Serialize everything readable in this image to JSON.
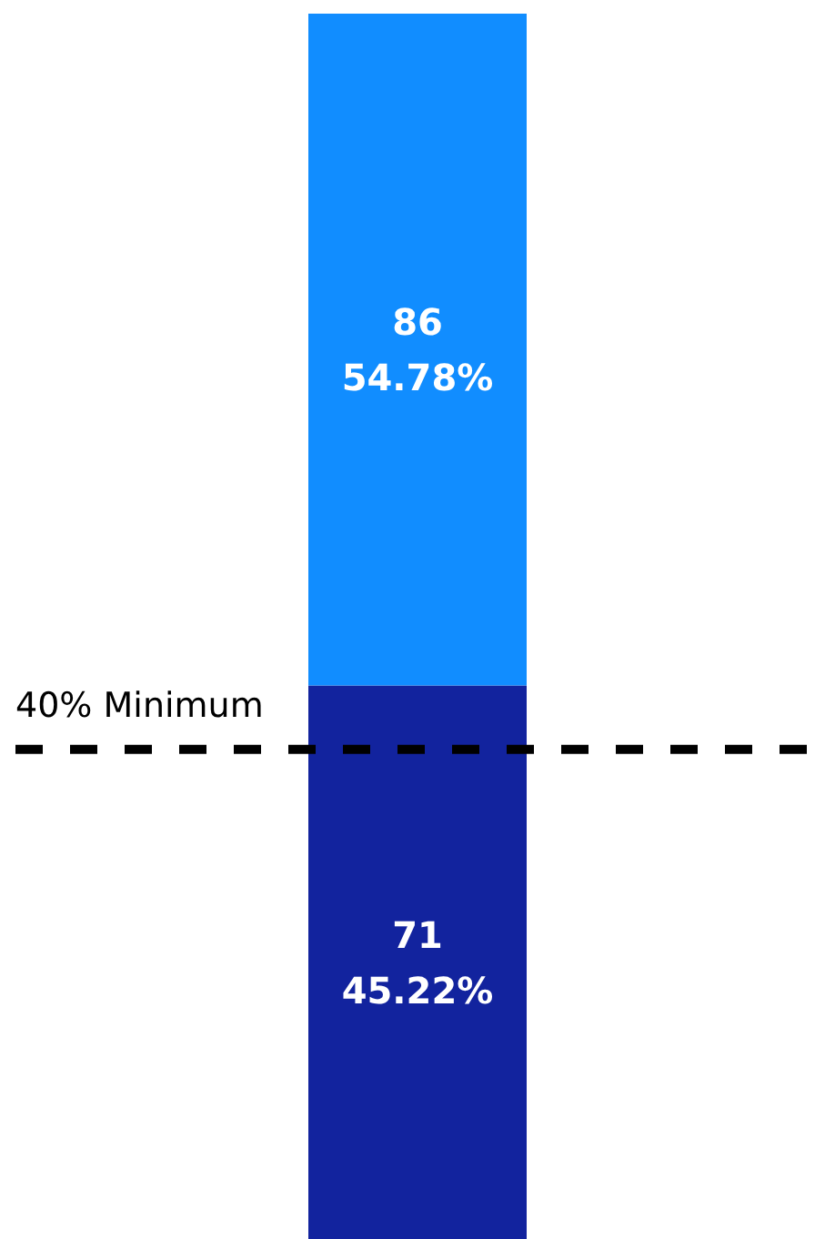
{
  "chart_data": {
    "type": "bar",
    "stacked": true,
    "categories": [
      null
    ],
    "series": [
      {
        "color": "#12239e",
        "values": [
          45.22
        ],
        "value_labels": [
          "71\n45.22%"
        ]
      },
      {
        "color": "#118dff",
        "values": [
          54.78
        ],
        "value_labels": [
          "86\n54.78%"
        ]
      }
    ],
    "ylim": [
      0,
      100
    ],
    "tick_labels": false,
    "grid": false,
    "ref_lines": [
      {
        "axis": "y",
        "value": 40,
        "label": "40% Minimum",
        "color": "#000000",
        "line_style": "dashed"
      }
    ]
  }
}
